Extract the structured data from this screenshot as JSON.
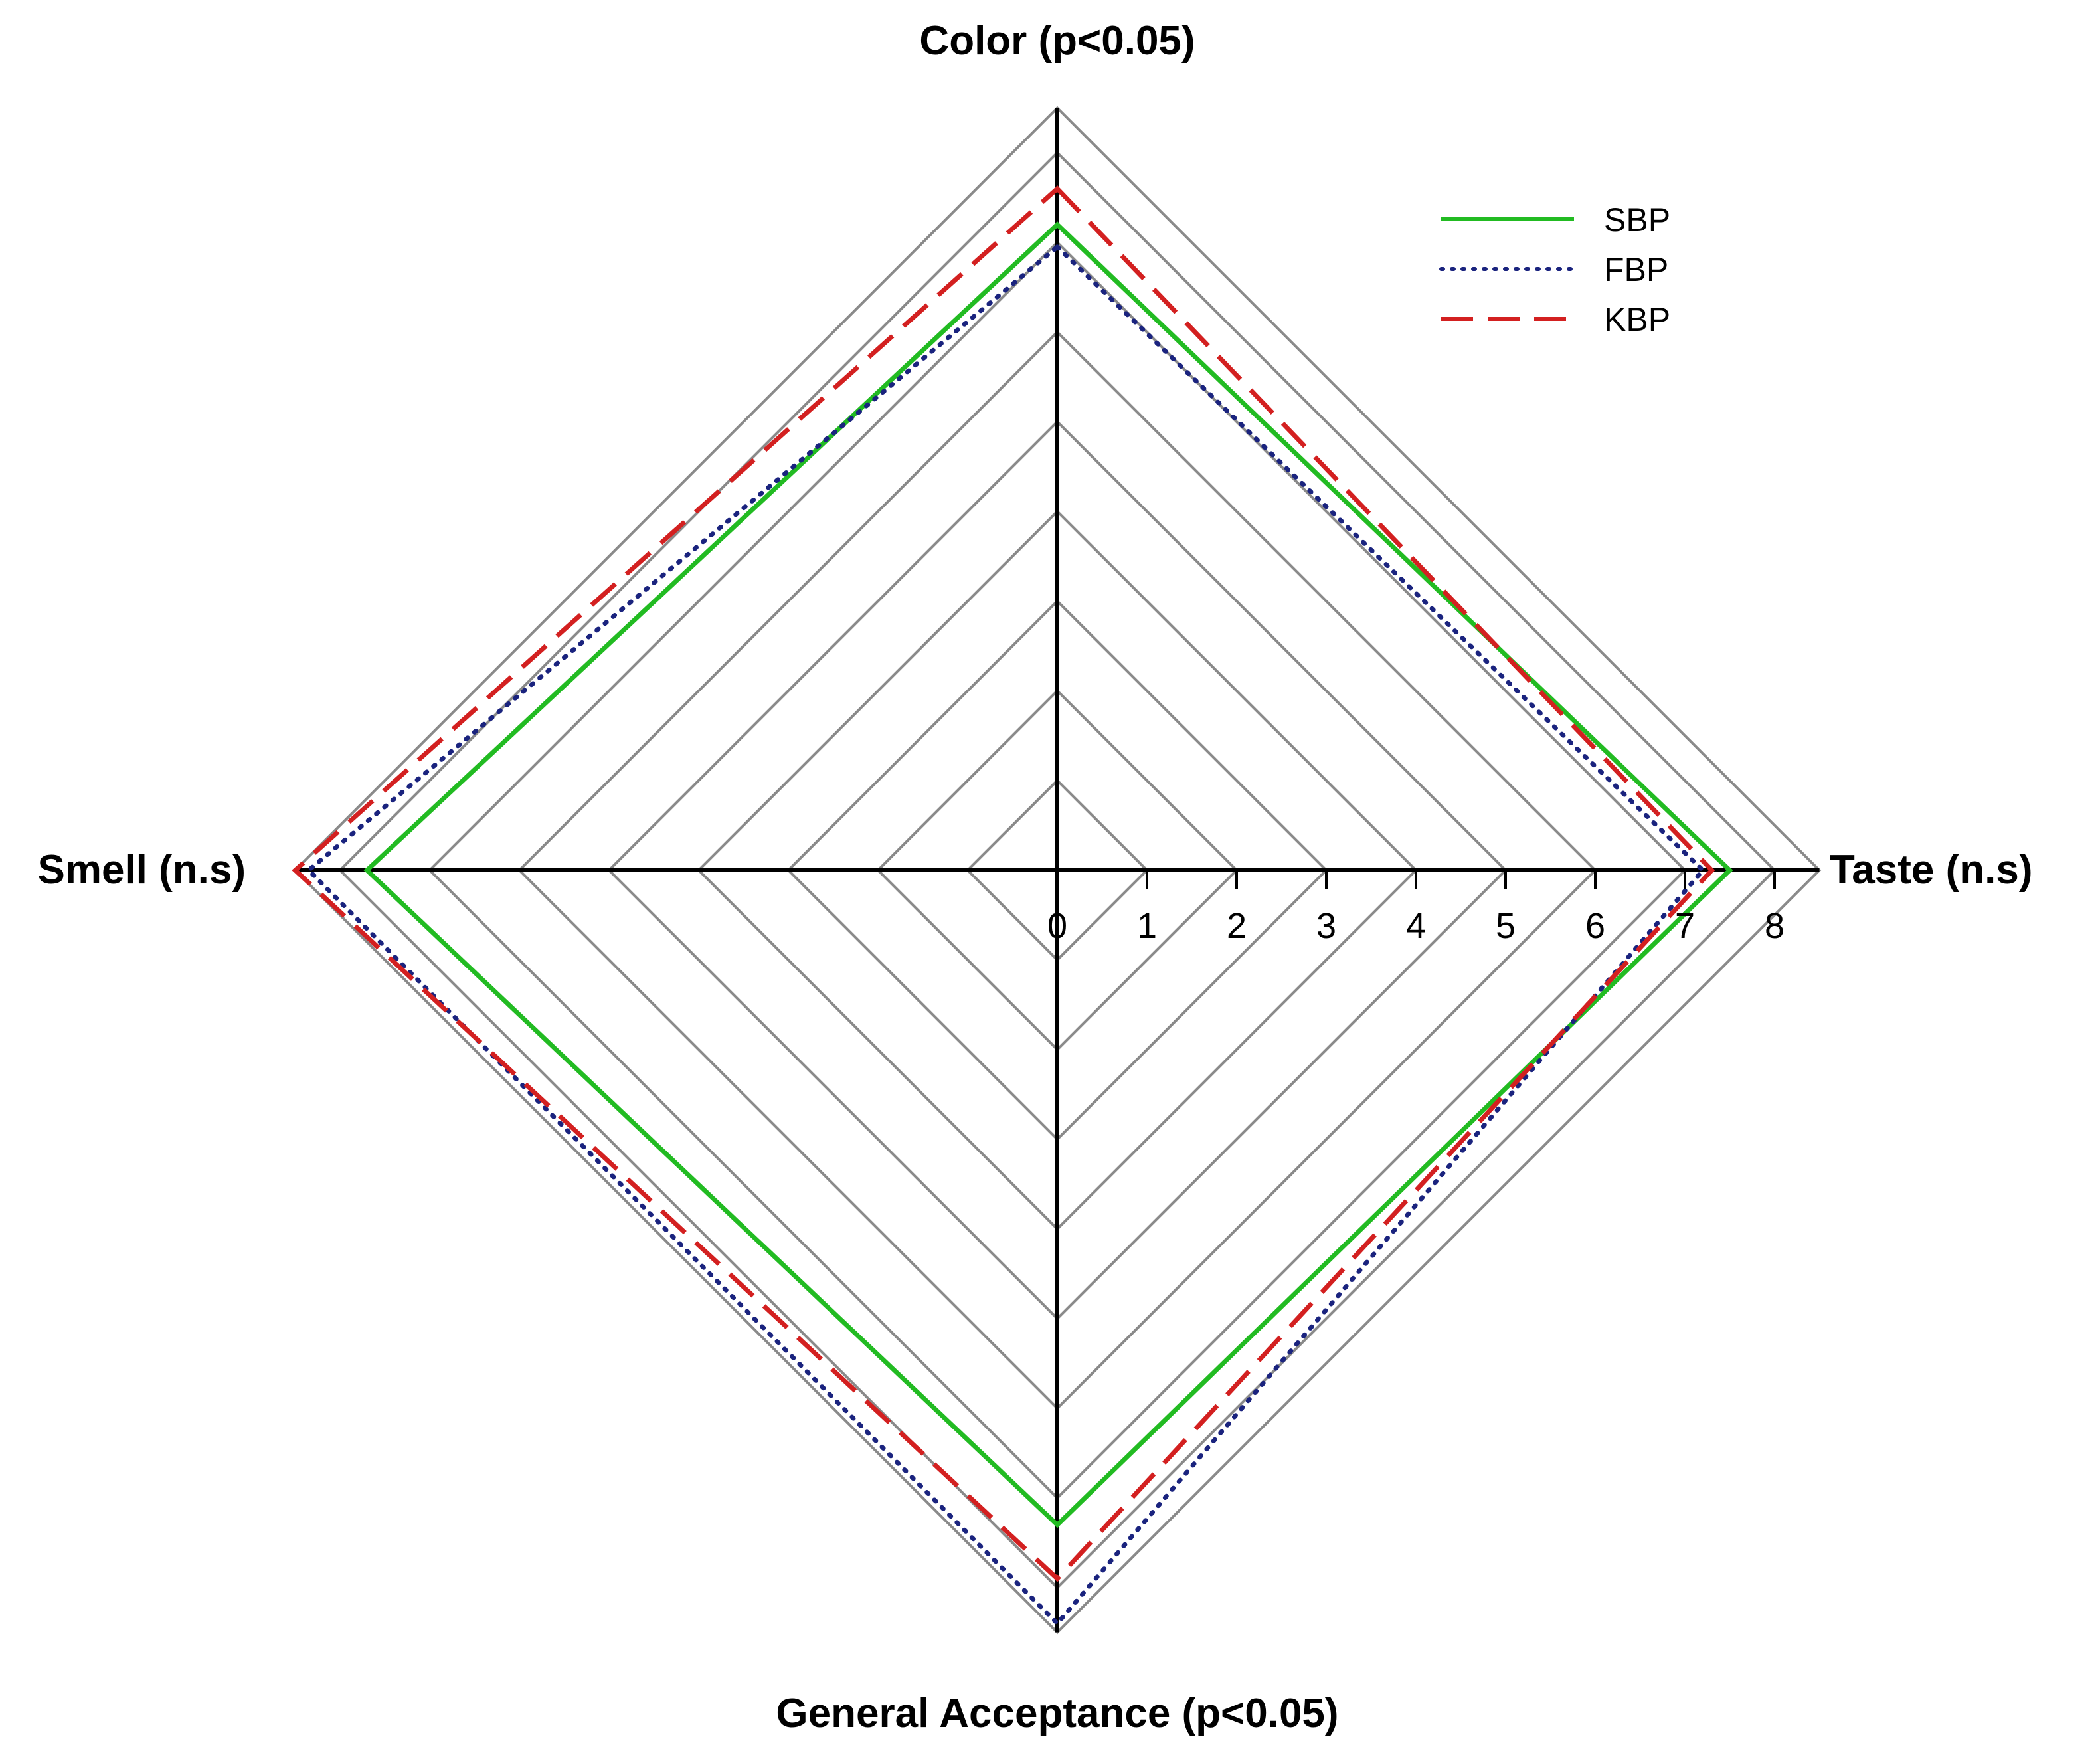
{
  "chart_data": {
    "type": "radar",
    "axes": [
      {
        "key": "color",
        "label": "Color (p<0.05)"
      },
      {
        "key": "taste",
        "label": "Taste (n.s)"
      },
      {
        "key": "acceptance",
        "label": "General Acceptance (p<0.05)"
      },
      {
        "key": "smell",
        "label": "Smell (n.s)"
      }
    ],
    "scale": {
      "min": 0,
      "max": 8.5,
      "ticks": [
        0,
        1,
        2,
        3,
        4,
        5,
        6,
        7,
        8
      ]
    },
    "grid_levels": [
      1,
      2,
      3,
      4,
      5,
      6,
      7,
      8,
      8.5
    ],
    "series": [
      {
        "name": "SBP",
        "color": "#22bb22",
        "dash": "solid",
        "values": [
          7.2,
          7.5,
          7.3,
          7.7
        ]
      },
      {
        "name": "FBP",
        "color": "#1a237e",
        "dash": "dotted",
        "values": [
          6.95,
          7.2,
          8.4,
          8.35
        ]
      },
      {
        "name": "KBP",
        "color": "#d32020",
        "dash": "dashed",
        "values": [
          7.6,
          7.3,
          7.9,
          8.5
        ]
      }
    ],
    "legend": "top-right",
    "grid": true
  }
}
